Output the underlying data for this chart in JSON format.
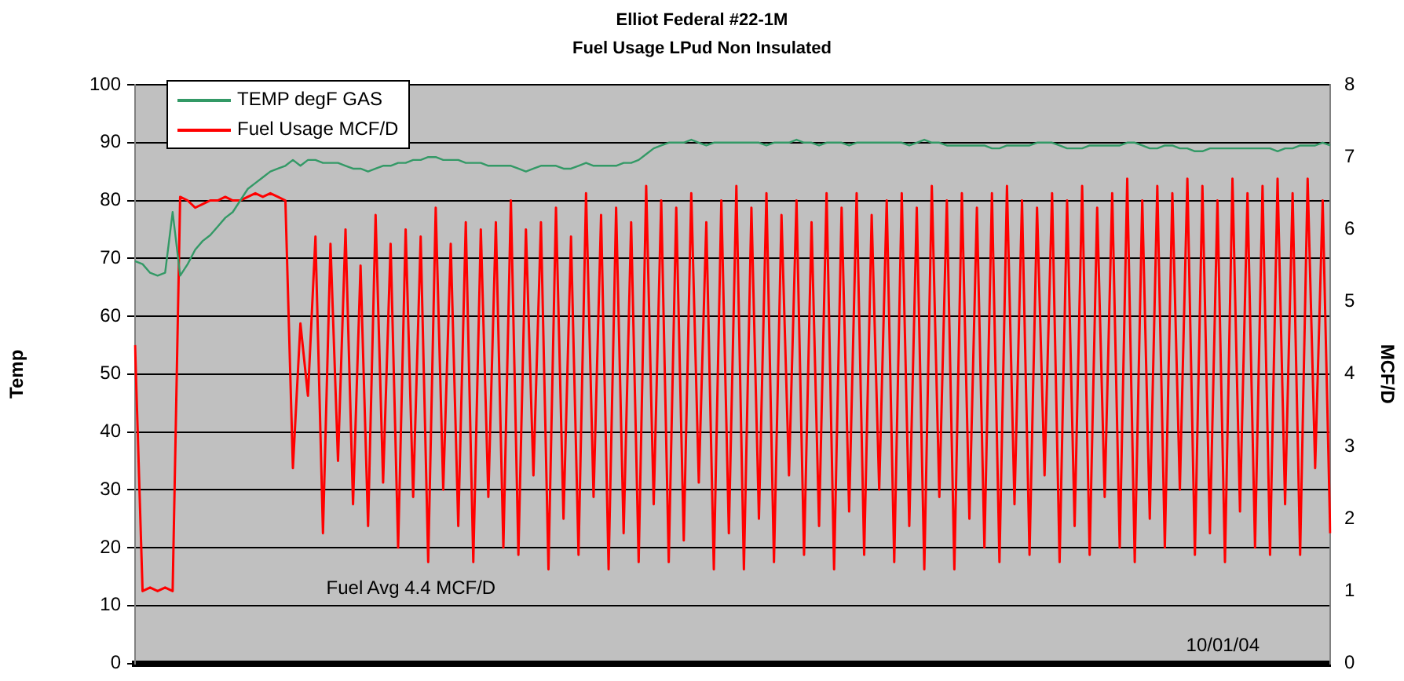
{
  "chart_data": {
    "type": "line",
    "title": "Elliot Federal #22-1M",
    "subtitle": "Fuel Usage LPud Non Insulated",
    "ylabel": "Temp",
    "y2label": "MCF/D",
    "categories": [
      null,
      null,
      null,
      null,
      null,
      null,
      null,
      null,
      null,
      null,
      null,
      null,
      null,
      null,
      null,
      null,
      null,
      null,
      null,
      null,
      null,
      null,
      null,
      null,
      null,
      null,
      null,
      null,
      null,
      null,
      null,
      null,
      null,
      null,
      null,
      null,
      null,
      null,
      null,
      null,
      null,
      null,
      null,
      null,
      null,
      null,
      null,
      null,
      null,
      null,
      null,
      null,
      null,
      null,
      null,
      null,
      null,
      null,
      null,
      null,
      null,
      null,
      null,
      null,
      null,
      null,
      null,
      null,
      null,
      null,
      null,
      null,
      null,
      null,
      null,
      null,
      null,
      null,
      null,
      null,
      null,
      null,
      null,
      null,
      null,
      null,
      null,
      null,
      null,
      null,
      null,
      null,
      null,
      null,
      null,
      null,
      null,
      null,
      null,
      null,
      null,
      null,
      null,
      null,
      null,
      null,
      null,
      null,
      null,
      null,
      null,
      null,
      null,
      null,
      null,
      null,
      null,
      null,
      null,
      null,
      null,
      null,
      null,
      null,
      null,
      null,
      null,
      null,
      null,
      null,
      null,
      null,
      null,
      null,
      null,
      null,
      null,
      null,
      null,
      null,
      null,
      null,
      null,
      null,
      null,
      null,
      null,
      null,
      null,
      null,
      null,
      null,
      null,
      null,
      null,
      null,
      null,
      null,
      null,
      null
    ],
    "series": [
      {
        "name": "TEMP degF GAS",
        "color": "#339966",
        "values": [
          69.5,
          69,
          67.5,
          67,
          67.5,
          78,
          67,
          69,
          71.5,
          73,
          74,
          75.5,
          77,
          78,
          80,
          82,
          83,
          84,
          85,
          85.5,
          86,
          87,
          86,
          87,
          87,
          86.5,
          86.5,
          86.5,
          86,
          85.5,
          85.5,
          85,
          85.5,
          86,
          86,
          86.5,
          86.5,
          87,
          87,
          87.5,
          87.5,
          87,
          87,
          87,
          86.5,
          86.5,
          86.5,
          86,
          86,
          86,
          86,
          85.5,
          85,
          85.5,
          86,
          86,
          86,
          85.5,
          85.5,
          86,
          86.5,
          86,
          86,
          86,
          86,
          86.5,
          86.5,
          87,
          88,
          89,
          89.5,
          90,
          90,
          90,
          90.5,
          90,
          89.5,
          90,
          90,
          90,
          90,
          90,
          90,
          90,
          89.5,
          90,
          90,
          90,
          90.5,
          90,
          90,
          89.5,
          90,
          90,
          90,
          89.5,
          90,
          90,
          90,
          90,
          90,
          90,
          90,
          89.5,
          90,
          90.5,
          90,
          90,
          89.5,
          89.5,
          89.5,
          89.5,
          89.5,
          89.5,
          89,
          89,
          89.5,
          89.5,
          89.5,
          89.5,
          90,
          90,
          90,
          89.5,
          89,
          89,
          89,
          89.5,
          89.5,
          89.5,
          89.5,
          89.5,
          90,
          90,
          89.5,
          89,
          89,
          89.5,
          89.5,
          89,
          89,
          88.5,
          88.5,
          89,
          89,
          89,
          89,
          89,
          89,
          89,
          89,
          89,
          88.5,
          89,
          89,
          89.5,
          89.5,
          89.5,
          90,
          89.5
        ]
      },
      {
        "name": "Fuel Usage MCF/D",
        "color": "#ff0000",
        "axis": "y2",
        "values": [
          4.4,
          1.0,
          1.05,
          1.0,
          1.05,
          1.0,
          6.45,
          6.4,
          6.3,
          6.35,
          6.4,
          6.4,
          6.45,
          6.4,
          6.4,
          6.45,
          6.5,
          6.45,
          6.5,
          6.45,
          6.4,
          2.7,
          4.7,
          3.7,
          5.9,
          1.8,
          5.8,
          2.8,
          6.0,
          2.2,
          5.5,
          1.9,
          6.2,
          2.5,
          5.8,
          1.6,
          6.0,
          2.3,
          5.9,
          1.4,
          6.3,
          2.4,
          5.8,
          1.9,
          6.1,
          1.4,
          6.0,
          2.3,
          6.1,
          1.6,
          6.4,
          1.5,
          6.0,
          2.6,
          6.1,
          1.3,
          6.3,
          2.0,
          5.9,
          1.5,
          6.5,
          2.3,
          6.2,
          1.3,
          6.3,
          1.8,
          6.1,
          1.4,
          6.6,
          2.2,
          6.4,
          1.4,
          6.3,
          1.7,
          6.5,
          2.5,
          6.1,
          1.3,
          6.4,
          1.8,
          6.6,
          1.3,
          6.3,
          2.0,
          6.5,
          1.4,
          6.2,
          2.6,
          6.4,
          1.5,
          6.1,
          1.9,
          6.5,
          1.3,
          6.3,
          2.1,
          6.5,
          1.5,
          6.2,
          2.4,
          6.4,
          1.4,
          6.5,
          1.9,
          6.3,
          1.3,
          6.6,
          2.3,
          6.4,
          1.3,
          6.5,
          2.0,
          6.3,
          1.6,
          6.5,
          1.4,
          6.6,
          2.2,
          6.4,
          1.5,
          6.3,
          2.6,
          6.5,
          1.4,
          6.4,
          1.9,
          6.6,
          1.5,
          6.3,
          2.3,
          6.5,
          1.6,
          6.7,
          1.4,
          6.4,
          2.0,
          6.6,
          1.6,
          6.5,
          2.4,
          6.7,
          1.5,
          6.6,
          1.8,
          6.4,
          1.4,
          6.7,
          2.1,
          6.5,
          1.6,
          6.6,
          1.5,
          6.7,
          2.2,
          6.5,
          1.5,
          6.7,
          2.7,
          6.4,
          1.8
        ]
      }
    ],
    "ylim": [
      0,
      100
    ],
    "yticks": [
      0,
      10,
      20,
      30,
      40,
      50,
      60,
      70,
      80,
      90,
      100
    ],
    "y2lim": [
      0,
      8
    ],
    "y2ticks": [
      0,
      1,
      2,
      3,
      4,
      5,
      6,
      7,
      8
    ],
    "grid": "y",
    "legend": "top left",
    "marker": "none",
    "annotations": [
      "Fuel Avg 4.4 MCF/D",
      "10/01/04"
    ]
  }
}
